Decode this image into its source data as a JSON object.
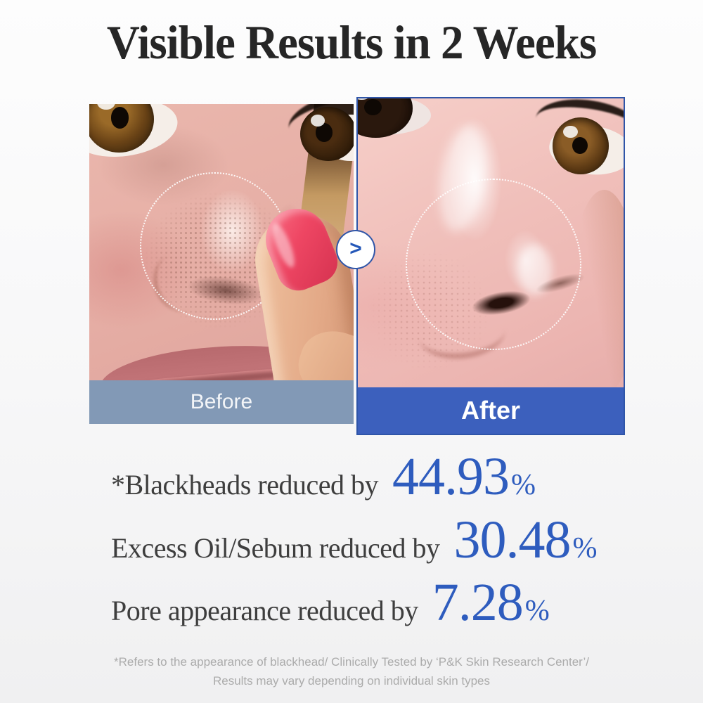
{
  "title": "Visible Results in 2 Weeks",
  "comparison": {
    "before_label": "Before",
    "after_label": "After",
    "arrow_icon": "chevron-right",
    "arrow_glyph": ">",
    "colors": {
      "before_bar": "#8299b6",
      "after_bar": "#3c60bd",
      "after_border": "#2f55a8",
      "accent_blue": "#2e5cbe"
    }
  },
  "stats": [
    {
      "label": "*Blackheads reduced by",
      "value": "44.93",
      "unit": "%"
    },
    {
      "label": "Excess Oil/Sebum reduced by",
      "value": "30.48",
      "unit": "%"
    },
    {
      "label": "Pore appearance reduced by",
      "value": "7.28",
      "unit": "%"
    }
  ],
  "footnote": {
    "line1": "*Refers to the appearance of blackhead/ Clinically Tested by ‘P&K Skin Research Center’/",
    "line2": "Results may vary depending on individual skin types"
  }
}
